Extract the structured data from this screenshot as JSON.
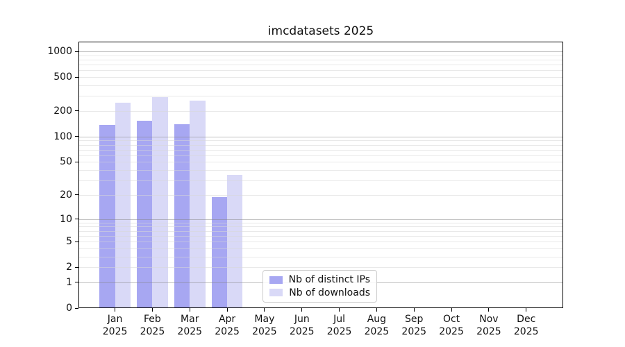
{
  "chart_data": {
    "type": "bar",
    "title": "imcdatasets 2025",
    "x_categories": [
      {
        "month": "Jan",
        "year": "2025"
      },
      {
        "month": "Feb",
        "year": "2025"
      },
      {
        "month": "Mar",
        "year": "2025"
      },
      {
        "month": "Apr",
        "year": "2025"
      },
      {
        "month": "May",
        "year": "2025"
      },
      {
        "month": "Jun",
        "year": "2025"
      },
      {
        "month": "Jul",
        "year": "2025"
      },
      {
        "month": "Aug",
        "year": "2025"
      },
      {
        "month": "Sep",
        "year": "2025"
      },
      {
        "month": "Oct",
        "year": "2025"
      },
      {
        "month": "Nov",
        "year": "2025"
      },
      {
        "month": "Dec",
        "year": "2025"
      }
    ],
    "series": [
      {
        "name": "Nb of distinct IPs",
        "color": "#a7a7f2",
        "values": [
          138,
          155,
          141,
          19,
          0,
          0,
          0,
          0,
          0,
          0,
          0,
          0
        ]
      },
      {
        "name": "Nb of downloads",
        "color": "#d9d9f7",
        "values": [
          250,
          290,
          265,
          35,
          0,
          0,
          0,
          0,
          0,
          0,
          0,
          0
        ]
      }
    ],
    "y_scale": "log1p",
    "y_ticks": [
      0,
      1,
      2,
      5,
      10,
      20,
      50,
      100,
      200,
      500,
      1000
    ],
    "y_top_tick": 1000,
    "grid": {
      "major_values": [
        1,
        10,
        100,
        1000
      ],
      "minor_values": [
        2,
        3,
        4,
        5,
        6,
        7,
        8,
        9,
        20,
        30,
        40,
        50,
        60,
        70,
        80,
        90,
        200,
        300,
        400,
        500,
        600,
        700,
        800,
        900
      ]
    },
    "legend_position": "bottom-center",
    "colors": {
      "distinct_ips": "#a7a7f2",
      "downloads": "#d9d9f7",
      "grid_major": "#c0c0c0",
      "grid_minor": "#ebebeb",
      "spine": "#000000",
      "text": "#111111"
    }
  }
}
